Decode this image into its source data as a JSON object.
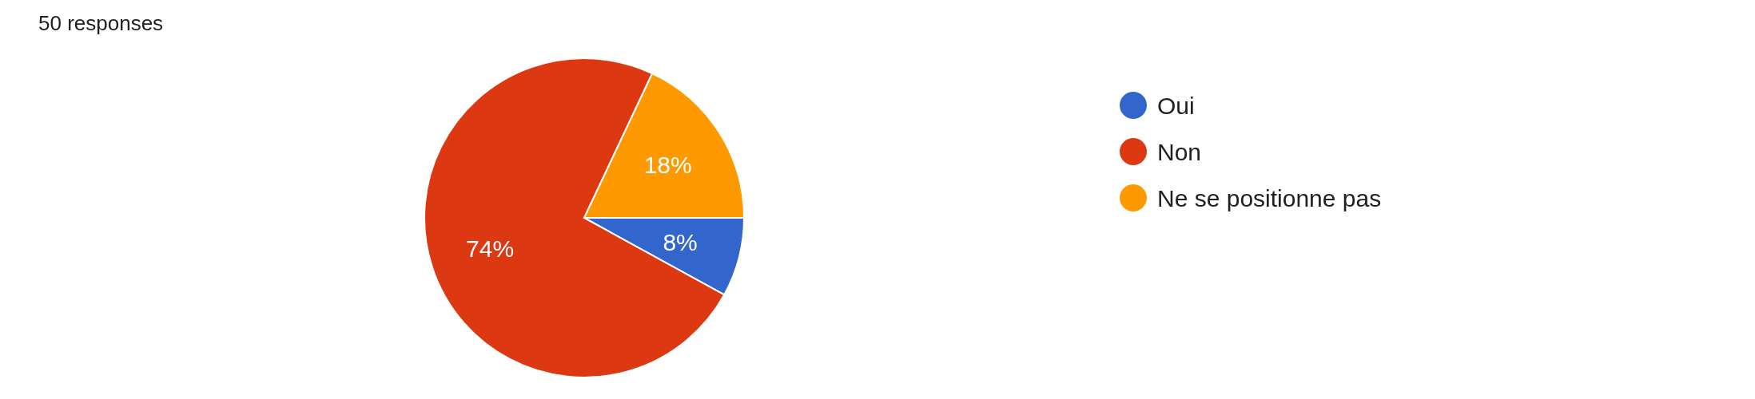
{
  "chart_data": {
    "type": "pie",
    "subtitle": "50 responses",
    "categories": [
      "Oui",
      "Non",
      "Ne se positionne pas"
    ],
    "values": [
      8,
      74,
      18
    ],
    "colors": [
      "#3366cc",
      "#dc3912",
      "#ff9900"
    ],
    "value_labels": [
      "8%",
      "74%",
      "18%"
    ],
    "legend": "right"
  }
}
